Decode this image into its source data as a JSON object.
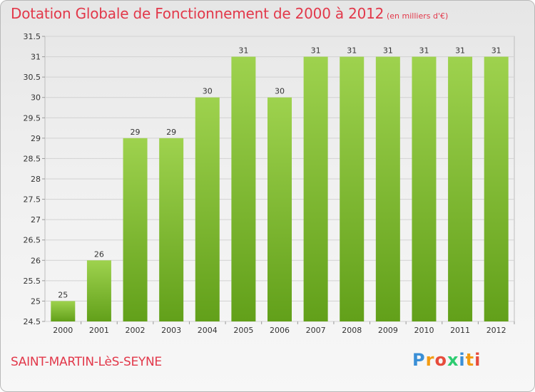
{
  "header": {
    "title": "Dotation Globale de Fonctionnement de 2000 à 2012",
    "unit": "(en milliers d'€)"
  },
  "footer": {
    "commune": "SAINT-MARTIN-LèS-SEYNE",
    "logo_letters": [
      "P",
      "r",
      "o",
      "x",
      "i",
      "t",
      "i"
    ],
    "logo_colors": [
      "#3a8fd6",
      "#f39c12",
      "#e74c3c",
      "#2ecc71",
      "#3a8fd6",
      "#f39c12",
      "#e74c3c"
    ]
  },
  "colors": {
    "bar_top": "#9ed24e",
    "bar_bottom": "#62a01a",
    "text": "#e2384a",
    "grid": "#d2d2d2"
  },
  "chart_data": {
    "type": "bar",
    "title": "Dotation Globale de Fonctionnement de 2000 à 2012",
    "subtitle": "(en milliers d'€)",
    "categories": [
      "2000",
      "2001",
      "2002",
      "2003",
      "2004",
      "2005",
      "2006",
      "2007",
      "2008",
      "2009",
      "2010",
      "2011",
      "2012"
    ],
    "values": [
      25,
      26,
      29,
      29,
      30,
      31,
      30,
      31,
      31,
      31,
      31,
      31,
      31
    ],
    "data_labels": [
      "25",
      "26",
      "29",
      "29",
      "30",
      "31",
      "30",
      "31",
      "31",
      "31",
      "31",
      "31",
      "31"
    ],
    "yticks": [
      "24.5",
      "25",
      "25.5",
      "26",
      "26.5",
      "27",
      "27.5",
      "28",
      "28.5",
      "29",
      "29.5",
      "30",
      "30.5",
      "31",
      "31.5"
    ],
    "ylim": [
      24.5,
      31.5
    ],
    "xlabel": "",
    "ylabel": "",
    "grid": true
  }
}
